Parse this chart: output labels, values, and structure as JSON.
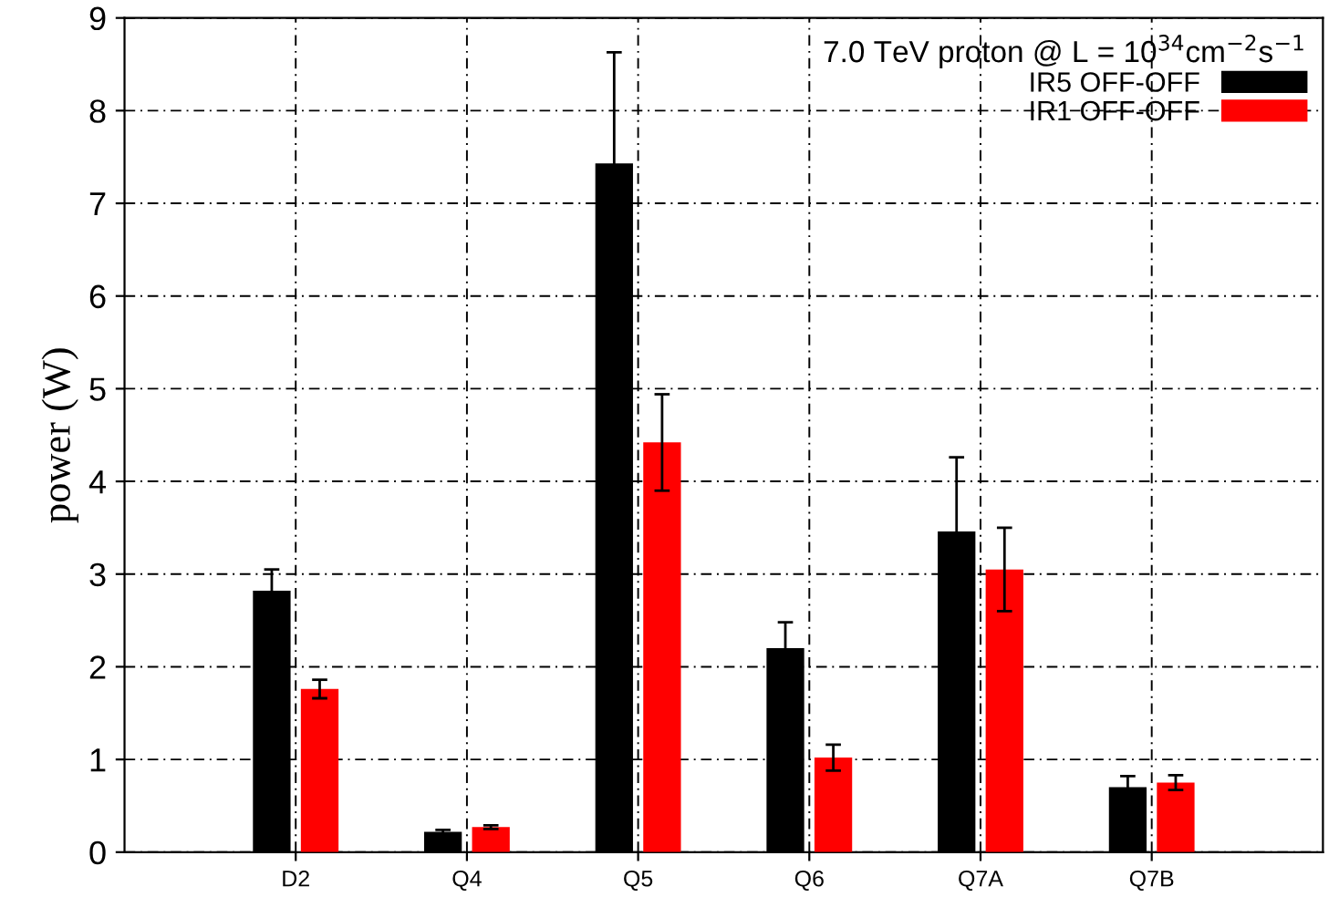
{
  "chart_data": {
    "type": "bar",
    "ylabel": "power (W)",
    "legend_title": "7.0 TeV proton @ L = 10$^{34}$cm$^{−2}$s$^{−1}$",
    "categories": [
      "D2",
      "Q4",
      "Q5",
      "Q6",
      "Q7A",
      "Q7B"
    ],
    "series": [
      {
        "name": "IR5 OFF-OFF",
        "color": "#000000",
        "values": [
          2.82,
          0.22,
          7.43,
          2.2,
          3.46,
          0.7
        ],
        "errors": [
          0.23,
          0.02,
          1.2,
          0.28,
          0.8,
          0.12
        ]
      },
      {
        "name": "IR1 OFF-OFF",
        "color": "#ff0000",
        "values": [
          1.76,
          0.27,
          4.42,
          1.02,
          3.05,
          0.75
        ],
        "errors": [
          0.1,
          0.02,
          0.52,
          0.14,
          0.45,
          0.08
        ]
      }
    ],
    "ylim": [
      0,
      9
    ],
    "yticks": [
      0,
      1,
      2,
      3,
      4,
      5,
      6,
      7,
      8,
      9
    ],
    "grid": true,
    "legend": "top right"
  }
}
